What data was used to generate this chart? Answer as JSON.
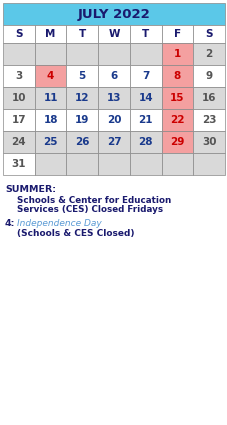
{
  "title": "JULY 2022",
  "title_bg": "#5bc8e8",
  "title_color": "#1a1a6e",
  "day_headers": [
    "S",
    "M",
    "T",
    "W",
    "T",
    "F",
    "S"
  ],
  "header_bg": "#ffffff",
  "header_color": "#1a1a6e",
  "weeks": [
    [
      null,
      null,
      null,
      null,
      null,
      1,
      2
    ],
    [
      3,
      4,
      5,
      6,
      7,
      8,
      9
    ],
    [
      10,
      11,
      12,
      13,
      14,
      15,
      16
    ],
    [
      17,
      18,
      19,
      20,
      21,
      22,
      23
    ],
    [
      24,
      25,
      26,
      27,
      28,
      29,
      30
    ],
    [
      31,
      null,
      null,
      null,
      null,
      null,
      null
    ]
  ],
  "row_colors": [
    "#d9d9d9",
    "#ffffff",
    "#d9d9d9",
    "#ffffff",
    "#d9d9d9",
    "#ffffff"
  ],
  "friday_col": 5,
  "friday_bg": "#f4a0a0",
  "special_row": 1,
  "special_col": 1,
  "special_bg": "#f4a0a0",
  "empty_cell_color": "#d9d9d9",
  "grid_color": "#888888",
  "number_color_normal": "#555555",
  "number_color_blue": "#1a3a8c",
  "number_color_red": "#cc0000",
  "summer_title": "SUMMER:",
  "summer_text1": "Schools & Center for Education",
  "summer_text2": "Services (CES) Closed Fridays",
  "note_number": "4:",
  "note_line1": "Independence Day",
  "note_line2": "(Schools & CES Closed)",
  "note_color_blue": "#5b9bd5",
  "text_color_dark": "#1a1a6e",
  "bg_color": "#ffffff",
  "figw": 2.28,
  "figh": 4.25,
  "dpi": 100
}
